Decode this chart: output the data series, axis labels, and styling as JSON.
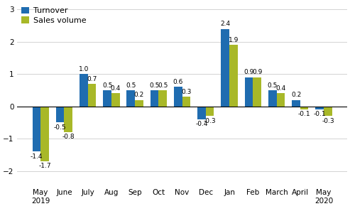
{
  "categories": [
    "May\n2019",
    "June",
    "July",
    "Aug",
    "Sep",
    "Oct",
    "Nov",
    "Dec",
    "Jan",
    "Feb",
    "March",
    "April",
    "May\n2020"
  ],
  "turnover": [
    -1.4,
    -0.5,
    1.0,
    0.5,
    0.5,
    0.5,
    0.6,
    -0.4,
    2.4,
    0.9,
    0.5,
    0.2,
    -0.1
  ],
  "sales_volume": [
    -1.7,
    -0.8,
    0.7,
    0.4,
    0.2,
    0.5,
    0.3,
    -0.3,
    1.9,
    0.9,
    0.4,
    -0.1,
    -0.3
  ],
  "turnover_color": "#1f6cb0",
  "sales_color": "#a8b828",
  "ylim": [
    -2.5,
    3.2
  ],
  "yticks": [
    -2,
    -1,
    0,
    1,
    2,
    3
  ],
  "bar_width": 0.35,
  "legend_labels": [
    "Turnover",
    "Sales volume"
  ],
  "label_fontsize": 6.5,
  "axis_fontsize": 7.5,
  "source_fontsize": 8.0,
  "legend_fontsize": 8.0
}
